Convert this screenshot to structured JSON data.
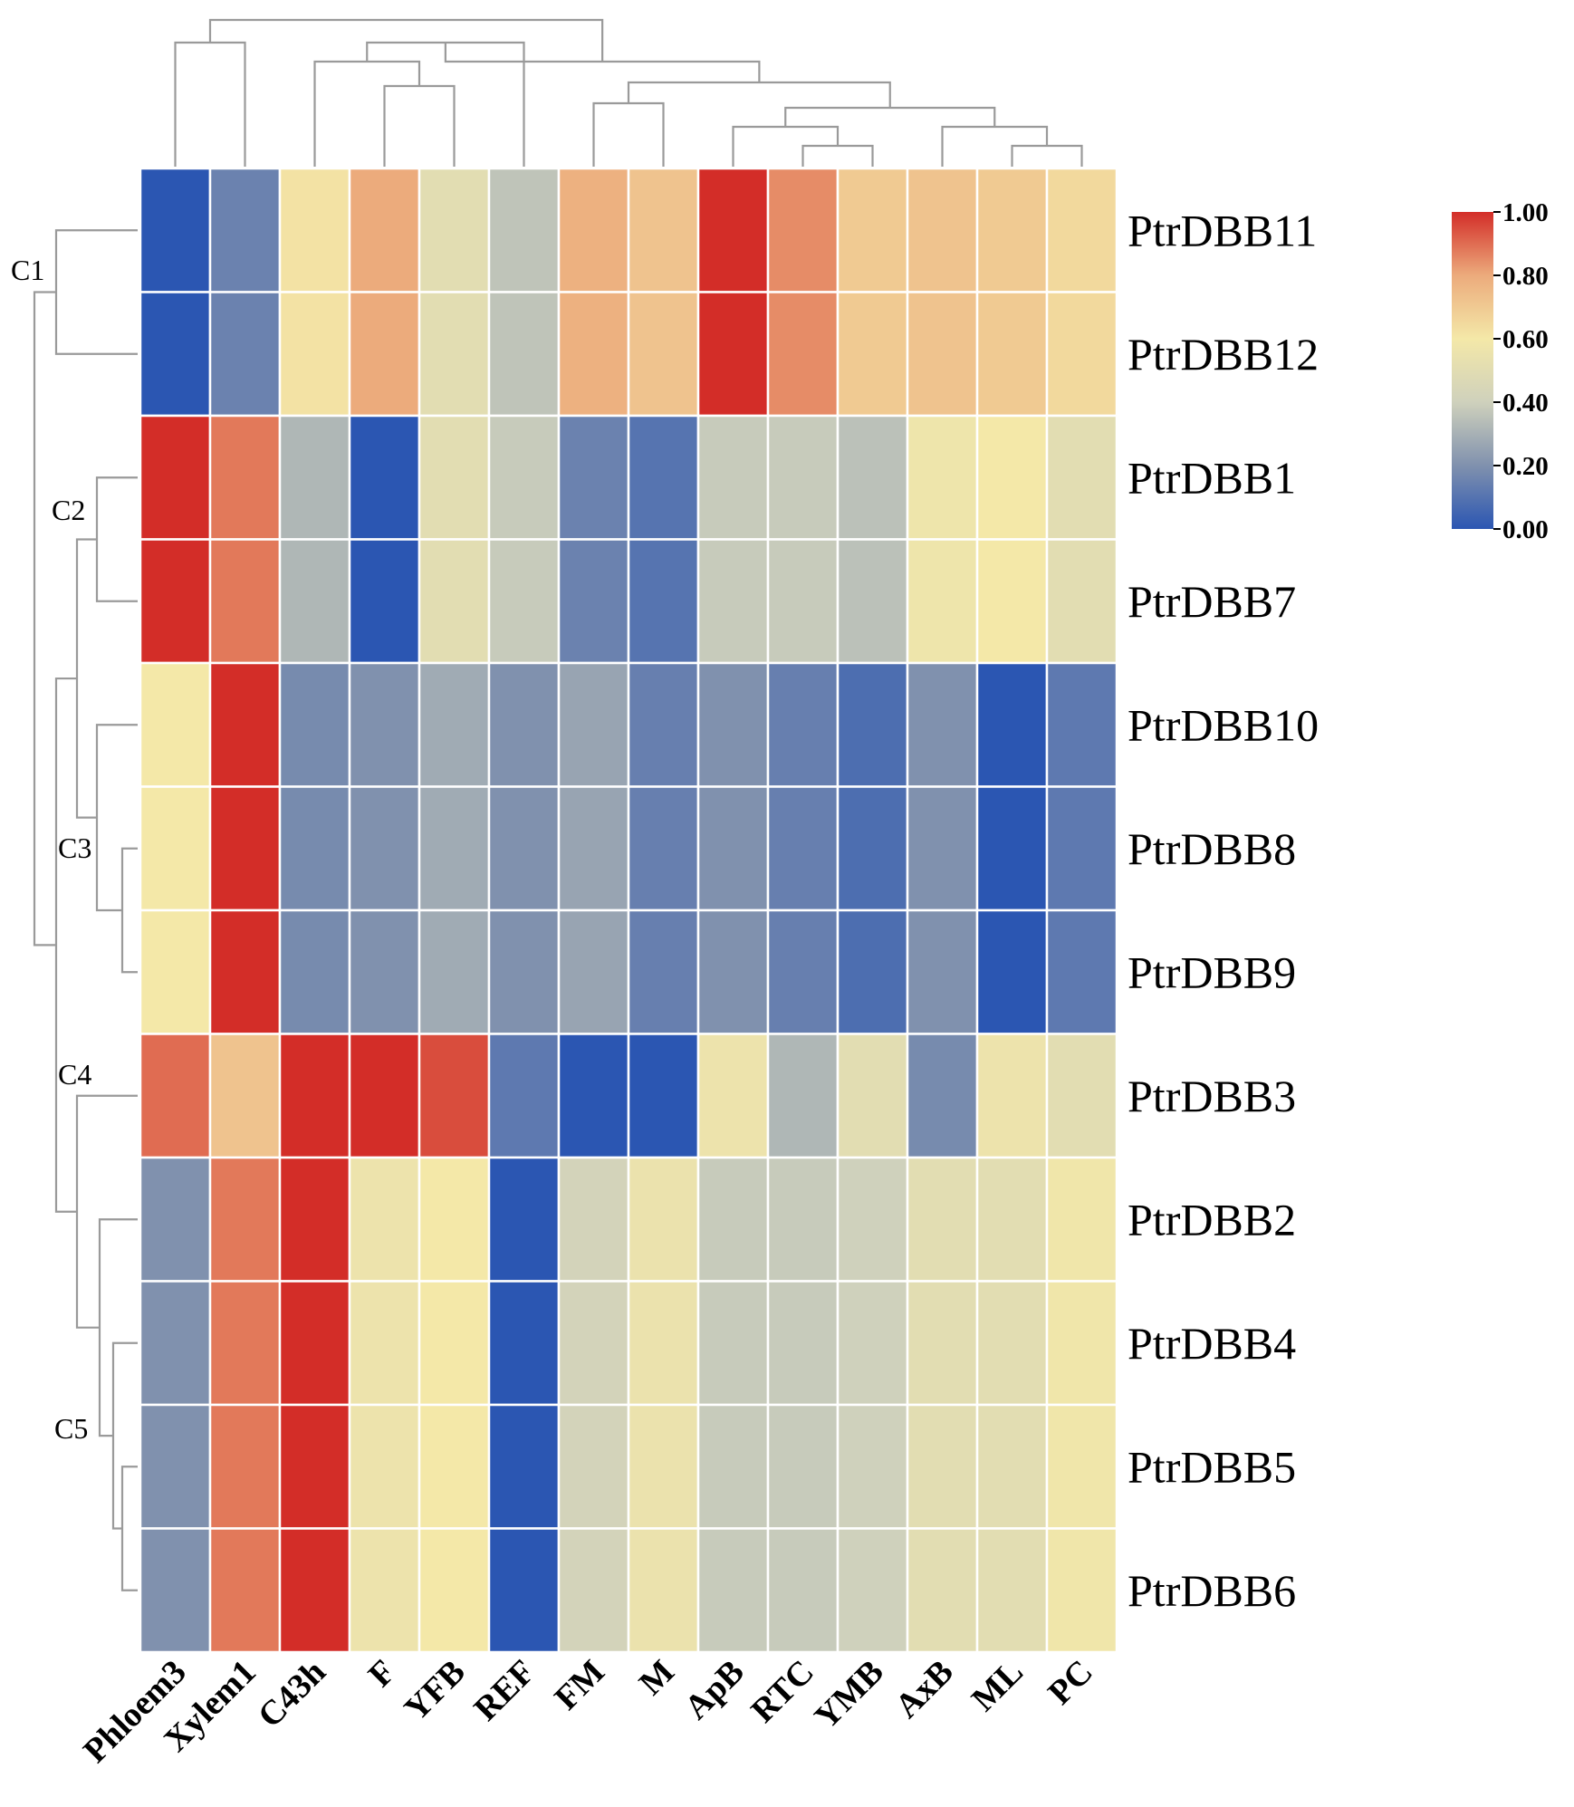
{
  "chart_data": {
    "type": "heatmap",
    "title": "",
    "columns": [
      "Phloem3",
      "Xylem1",
      "C43h",
      "F",
      "YFB",
      "REF",
      "FM",
      "M",
      "ApB",
      "RTC",
      "YMB",
      "AxB",
      "ML",
      "PC"
    ],
    "rows": [
      "PtrDBB11",
      "PtrDBB12",
      "PtrDBB1",
      "PtrDBB7",
      "PtrDBB10",
      "PtrDBB8",
      "PtrDBB9",
      "PtrDBB3",
      "PtrDBB2",
      "PtrDBB4",
      "PtrDBB5",
      "PtrDBB6"
    ],
    "values": [
      [
        0.0,
        0.15,
        0.62,
        0.8,
        0.5,
        0.36,
        0.78,
        0.72,
        1.0,
        0.85,
        0.7,
        0.72,
        0.7,
        0.65
      ],
      [
        0.0,
        0.15,
        0.62,
        0.8,
        0.5,
        0.36,
        0.78,
        0.72,
        1.0,
        0.85,
        0.7,
        0.72,
        0.7,
        0.65
      ],
      [
        1.0,
        0.88,
        0.32,
        0.0,
        0.5,
        0.38,
        0.15,
        0.1,
        0.38,
        0.38,
        0.35,
        0.57,
        0.6,
        0.5
      ],
      [
        1.0,
        0.88,
        0.32,
        0.0,
        0.5,
        0.38,
        0.15,
        0.1,
        0.38,
        0.38,
        0.35,
        0.57,
        0.6,
        0.5
      ],
      [
        0.6,
        1.0,
        0.18,
        0.2,
        0.28,
        0.2,
        0.26,
        0.14,
        0.2,
        0.14,
        0.08,
        0.2,
        0.0,
        0.12
      ],
      [
        0.6,
        1.0,
        0.18,
        0.2,
        0.28,
        0.2,
        0.26,
        0.14,
        0.2,
        0.14,
        0.08,
        0.2,
        0.0,
        0.12
      ],
      [
        0.6,
        1.0,
        0.18,
        0.2,
        0.28,
        0.2,
        0.26,
        0.14,
        0.2,
        0.14,
        0.08,
        0.2,
        0.0,
        0.12
      ],
      [
        0.9,
        0.72,
        1.0,
        1.0,
        0.95,
        0.12,
        0.0,
        0.0,
        0.56,
        0.32,
        0.5,
        0.18,
        0.56,
        0.5
      ],
      [
        0.2,
        0.88,
        1.0,
        0.56,
        0.6,
        0.0,
        0.42,
        0.55,
        0.38,
        0.38,
        0.4,
        0.5,
        0.5,
        0.58
      ],
      [
        0.2,
        0.88,
        1.0,
        0.56,
        0.6,
        0.0,
        0.42,
        0.55,
        0.38,
        0.38,
        0.4,
        0.5,
        0.5,
        0.58
      ],
      [
        0.2,
        0.88,
        1.0,
        0.56,
        0.6,
        0.0,
        0.42,
        0.55,
        0.38,
        0.38,
        0.4,
        0.5,
        0.5,
        0.58
      ],
      [
        0.2,
        0.88,
        1.0,
        0.56,
        0.6,
        0.0,
        0.42,
        0.55,
        0.38,
        0.38,
        0.4,
        0.5,
        0.5,
        0.58
      ]
    ],
    "row_clusters": [
      "C1",
      "C2",
      "C3",
      "C4",
      "C5"
    ],
    "colorbar": {
      "range": [
        0,
        1
      ],
      "ticks": [
        "0.00",
        "0.20",
        "0.40",
        "0.60",
        "0.80",
        "1.00"
      ],
      "colors": [
        "#2b56b2",
        "#8091ae",
        "#cfd1bc",
        "#f4e8a8",
        "#ecab7c",
        "#d32d28"
      ]
    },
    "legend_position": "top-right"
  }
}
